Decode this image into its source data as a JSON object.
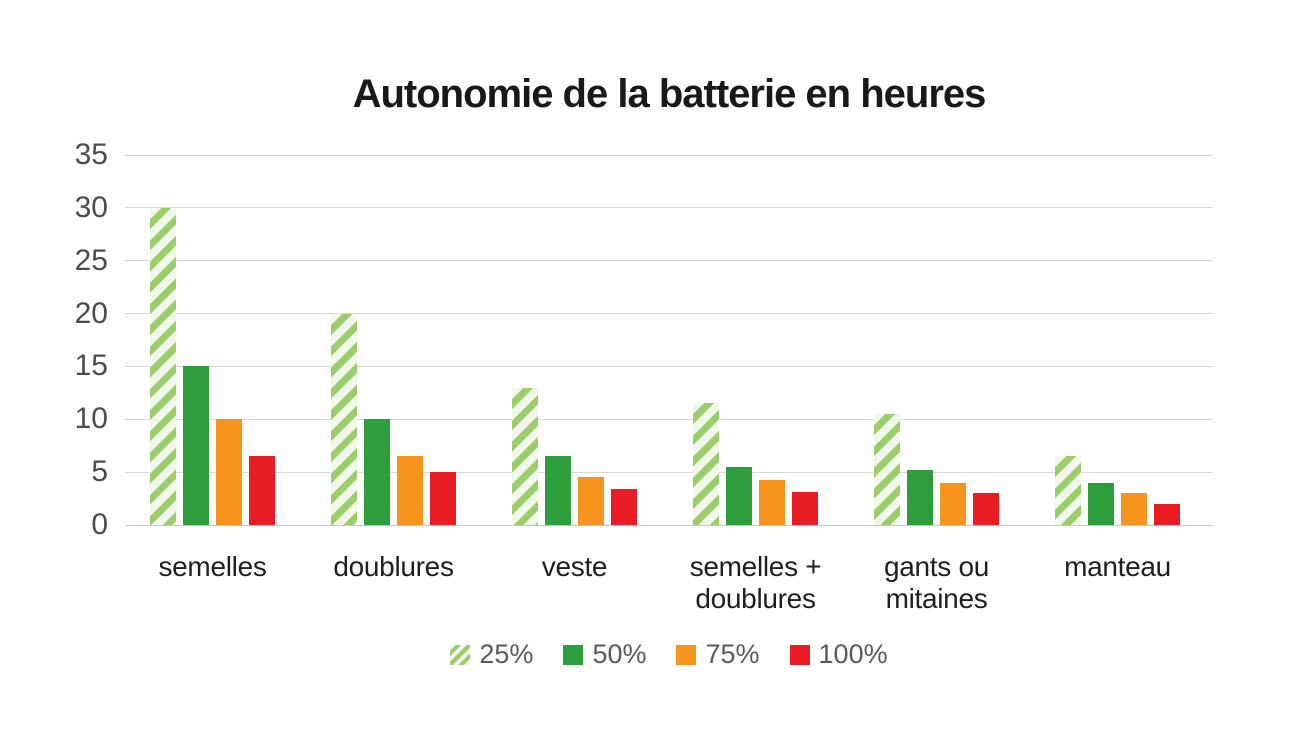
{
  "chart_data": {
    "type": "bar",
    "title": "Autonomie de la batterie en heures",
    "xlabel": "",
    "ylabel": "",
    "ylim": [
      0,
      35
    ],
    "yticks": [
      0,
      5,
      10,
      15,
      20,
      25,
      30,
      35
    ],
    "grid": true,
    "legend_position": "bottom",
    "categories": [
      {
        "slug": "semelles",
        "lines": [
          "semelles"
        ]
      },
      {
        "slug": "doublures",
        "lines": [
          "doublures"
        ]
      },
      {
        "slug": "veste",
        "lines": [
          "veste"
        ]
      },
      {
        "slug": "semelles-doublures",
        "lines": [
          "semelles +",
          "doublures"
        ]
      },
      {
        "slug": "gants-ou-mitaines",
        "lines": [
          "gants ou",
          "mitaines"
        ]
      },
      {
        "slug": "manteau",
        "lines": [
          "manteau"
        ]
      }
    ],
    "series": [
      {
        "name": "25%",
        "color": "#9bce6a",
        "pattern": "diagonal-stripes",
        "values": [
          30,
          20,
          13,
          11.5,
          10.5,
          6.5
        ]
      },
      {
        "name": "50%",
        "color": "#2e9e3d",
        "pattern": "solid",
        "values": [
          15,
          10,
          6.5,
          5.5,
          5.2,
          4
        ]
      },
      {
        "name": "75%",
        "color": "#f6941d",
        "pattern": "solid",
        "values": [
          10,
          6.5,
          4.5,
          4.3,
          4,
          3
        ]
      },
      {
        "name": "100%",
        "color": "#e91b23",
        "pattern": "solid",
        "values": [
          6.5,
          5,
          3.4,
          3.1,
          3,
          2
        ]
      }
    ]
  },
  "colors": {
    "background": "#ffffff",
    "gridline": "#d8d8d8",
    "axis_line": "#c4c4c4",
    "y_tick_label": "#4c4c4c",
    "x_tick_label": "#1f1f1f",
    "legend_label": "#5a5a5a",
    "title": "#191919",
    "stripe_background": "#f1f7ea"
  }
}
